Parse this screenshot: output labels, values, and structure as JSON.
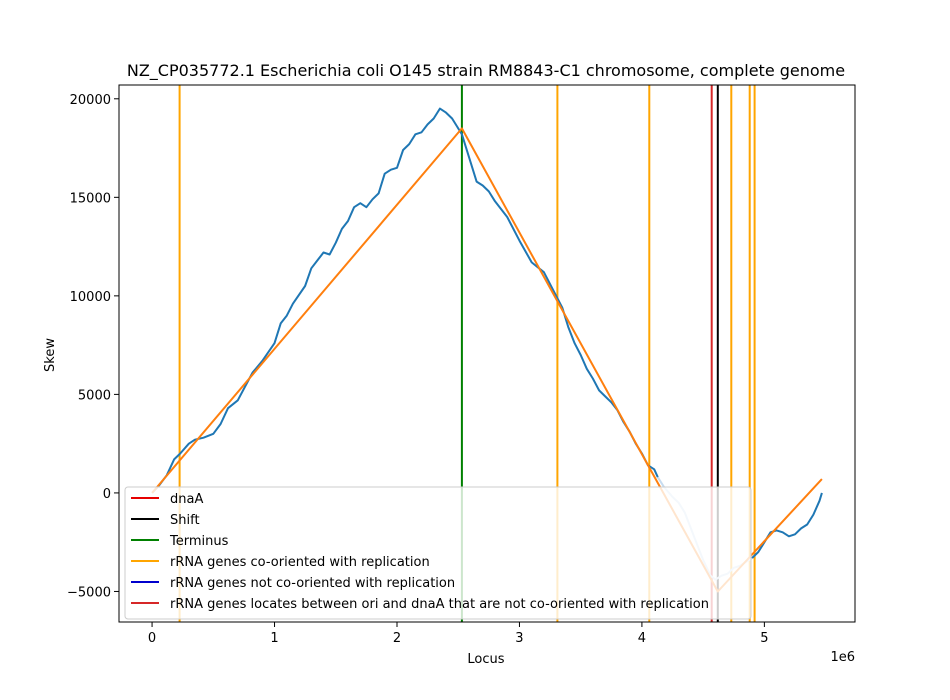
{
  "chart_data": {
    "type": "line",
    "title": "NZ_CP035772.1 Escherichia coli O145 strain RM8843-C1 chromosome, complete genome",
    "xlabel": "Locus",
    "ylabel": "Skew",
    "x_offset_label": "1e6",
    "xlim": [
      -270000,
      5740000
    ],
    "ylim": [
      -6550,
      20700
    ],
    "x_ticks": [
      0,
      1000000,
      2000000,
      3000000,
      4000000,
      5000000
    ],
    "x_tick_labels": [
      "0",
      "1",
      "2",
      "3",
      "4",
      "5"
    ],
    "y_ticks": [
      -5000,
      0,
      5000,
      10000,
      15000,
      20000
    ],
    "y_tick_labels": [
      "−5000",
      "0",
      "5000",
      "10000",
      "15000",
      "20000"
    ],
    "grid": false,
    "legend_location": "lower-left",
    "skew_series": {
      "color": "#1f77b4",
      "x": [
        0,
        60000,
        120000,
        180000,
        230000,
        300000,
        350000,
        420000,
        500000,
        560000,
        620000,
        700000,
        760000,
        820000,
        900000,
        1000000,
        1050000,
        1100000,
        1150000,
        1250000,
        1300000,
        1350000,
        1400000,
        1450000,
        1500000,
        1550000,
        1600000,
        1650000,
        1700000,
        1750000,
        1800000,
        1850000,
        1900000,
        1950000,
        2000000,
        2050000,
        2100000,
        2150000,
        2200000,
        2250000,
        2300000,
        2350000,
        2400000,
        2450000,
        2490000,
        2530000,
        2600000,
        2650000,
        2700000,
        2750000,
        2800000,
        2900000,
        3000000,
        3100000,
        3200000,
        3300000,
        3350000,
        3400000,
        3450000,
        3500000,
        3550000,
        3600000,
        3650000,
        3700000,
        3750000,
        3800000,
        3850000,
        3900000,
        3950000,
        4000000,
        4050000,
        4100000,
        4130000
      ],
      "y": [
        0,
        400,
        900,
        1700,
        2000,
        2500,
        2700,
        2800,
        3000,
        3500,
        4300,
        4700,
        5400,
        6100,
        6700,
        7600,
        8600,
        9000,
        9600,
        10500,
        11400,
        11800,
        12200,
        12100,
        12700,
        13400,
        13800,
        14500,
        14700,
        14500,
        14900,
        15200,
        16200,
        16400,
        16500,
        17400,
        17700,
        18200,
        18300,
        18700,
        19000,
        19500,
        19300,
        19000,
        18600,
        18200,
        16800,
        15800,
        15600,
        15300,
        14800,
        14000,
        12800,
        11700,
        11200,
        10000,
        9400,
        8400,
        7600,
        7000,
        6300,
        5800,
        5200,
        4900,
        4600,
        4200,
        3600,
        3100,
        2500,
        2000,
        1400,
        1200,
        800
      ]
    },
    "skew_series_faded": {
      "color": "#c6dbef",
      "x": [
        4130000,
        4180000,
        4250000,
        4300000,
        4350000,
        4400000,
        4450000,
        4500000,
        4560000,
        4600000,
        4650000,
        4700000,
        4750000,
        4800000,
        4850000,
        4900000
      ],
      "y": [
        800,
        300,
        -200,
        -500,
        -1000,
        -1800,
        -2600,
        -3400,
        -4200,
        -4400,
        -4200,
        -4100,
        -3800,
        -3700,
        -3500,
        -3300
      ]
    },
    "skew_series_end": {
      "color": "#1f77b4",
      "x": [
        4900000,
        4950000,
        5000000,
        5050000,
        5100000,
        5150000,
        5200000,
        5250000,
        5300000,
        5350000,
        5400000,
        5450000,
        5470000
      ],
      "y": [
        -3300,
        -3000,
        -2500,
        -2000,
        -1900,
        -2000,
        -2200,
        -2100,
        -1800,
        -1600,
        -1100,
        -400,
        0
      ]
    },
    "fit_series": {
      "color": "#ff7f0e",
      "x": [
        0,
        2530000,
        4620000,
        5470000
      ],
      "y": [
        0,
        18500,
        -5000,
        700
      ]
    },
    "vertical_lines": [
      {
        "x": 225000,
        "type": "rrna_co"
      },
      {
        "x": 2530000,
        "type": "terminus"
      },
      {
        "x": 3310000,
        "type": "rrna_co"
      },
      {
        "x": 4060000,
        "type": "rrna_co"
      },
      {
        "x": 4570000,
        "type": "dnaa"
      },
      {
        "x": 4620000,
        "type": "shift"
      },
      {
        "x": 4730000,
        "type": "rrna_co"
      },
      {
        "x": 4880000,
        "type": "rrna_co"
      },
      {
        "x": 4920000,
        "type": "rrna_co"
      }
    ],
    "line_colors": {
      "dnaa": "#d62728",
      "shift": "#000000",
      "terminus": "#008000",
      "rrna_co": "#ffa500",
      "rrna_not_co": "#0000cd",
      "rrna_between": "#d62728"
    },
    "legend": [
      {
        "label": "dnaA",
        "color": "#e60000"
      },
      {
        "label": "Shift",
        "color": "#000000"
      },
      {
        "label": "Terminus",
        "color": "#008000"
      },
      {
        "label": "rRNA genes co-oriented with replication",
        "color": "#ffa500"
      },
      {
        "label": "rRNA genes not co-oriented with replication",
        "color": "#0000cd"
      },
      {
        "label": "rRNA genes locates between ori and dnaA that are not co-oriented with replication",
        "color": "#d62728"
      }
    ]
  }
}
